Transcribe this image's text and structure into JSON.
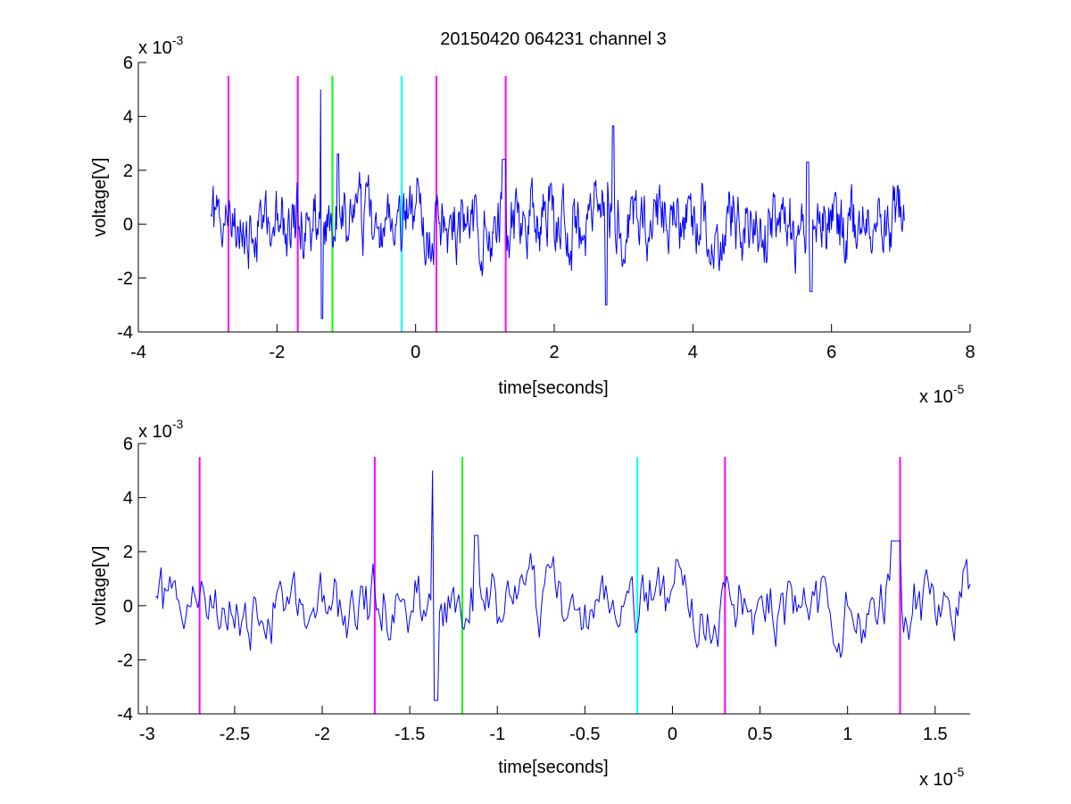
{
  "figure": {
    "title": "20150420 064231 channel 3"
  },
  "colors": {
    "signal": "#0000ff",
    "magenta": "#ff00ff",
    "green": "#00ff00",
    "cyan": "#00ffff",
    "axis": "#000000"
  },
  "chart_data": [
    {
      "type": "line",
      "title": "20150420 064231 channel 3",
      "xlabel": "time[seconds]",
      "ylabel": "voltage[V]",
      "x_multiplier_label": "x 10",
      "x_multiplier_exp": "-5",
      "y_multiplier_label": "x 10",
      "y_multiplier_exp": "-3",
      "xlim": [
        -4,
        8
      ],
      "ylim": [
        -4,
        6
      ],
      "xticks": [
        -4,
        -2,
        0,
        2,
        4,
        6,
        8
      ],
      "xtick_labels": [
        "-4",
        "-2",
        "0",
        "2",
        "4",
        "6",
        "8"
      ],
      "yticks": [
        -4,
        -2,
        0,
        2,
        4,
        6
      ],
      "ytick_labels": [
        "-4",
        "-2",
        "0",
        "2",
        "4",
        "6"
      ],
      "grid": false,
      "series": [
        {
          "color": "#0000ff",
          "x_start": -2.95,
          "x_end": 7.05,
          "points": 1000,
          "kind": "noise_waveform",
          "y_min": -3.6,
          "y_max": 5.0
        }
      ],
      "vertical_lines": [
        {
          "x": -2.7,
          "color": "#ff00ff"
        },
        {
          "x": -1.7,
          "color": "#ff00ff"
        },
        {
          "x": -1.2,
          "color": "#00ff00"
        },
        {
          "x": -0.2,
          "color": "#00ffff"
        },
        {
          "x": 0.3,
          "color": "#ff00ff"
        },
        {
          "x": 1.3,
          "color": "#ff00ff"
        }
      ],
      "vline_range": [
        -4,
        5.5
      ]
    },
    {
      "type": "line",
      "title": "",
      "xlabel": "time[seconds]",
      "ylabel": "voltage[V]",
      "x_multiplier_label": "x 10",
      "x_multiplier_exp": "-5",
      "y_multiplier_label": "x 10",
      "y_multiplier_exp": "-3",
      "xlim": [
        -3.05,
        1.7
      ],
      "ylim": [
        -4,
        6
      ],
      "xticks": [
        -3,
        -2.5,
        -2,
        -1.5,
        -1,
        -0.5,
        0,
        0.5,
        1,
        1.5
      ],
      "xtick_labels": [
        "-3",
        "-2.5",
        "-2",
        "-1.5",
        "-1",
        "-0.5",
        "0",
        "0.5",
        "1",
        "1.5"
      ],
      "yticks": [
        -4,
        -2,
        0,
        2,
        4,
        6
      ],
      "ytick_labels": [
        "-4",
        "-2",
        "0",
        "2",
        "4",
        "6"
      ],
      "grid": false,
      "series": [
        {
          "color": "#0000ff",
          "x_start": -2.95,
          "x_end": 1.7,
          "points": 465,
          "kind": "noise_waveform",
          "y_min": -3.6,
          "y_max": 5.0
        }
      ],
      "vertical_lines": [
        {
          "x": -2.7,
          "color": "#ff00ff"
        },
        {
          "x": -1.7,
          "color": "#ff00ff"
        },
        {
          "x": -1.2,
          "color": "#00ff00"
        },
        {
          "x": -0.2,
          "color": "#00ffff"
        },
        {
          "x": 0.3,
          "color": "#ff00ff"
        },
        {
          "x": 1.3,
          "color": "#ff00ff"
        }
      ],
      "vline_range": [
        -4,
        5.5
      ]
    }
  ]
}
